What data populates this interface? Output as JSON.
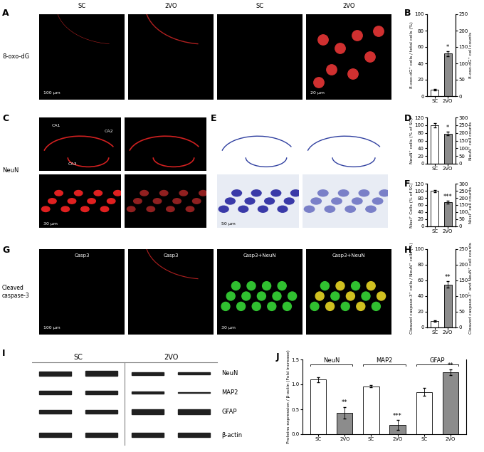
{
  "chart_data": [
    {
      "type": "bar",
      "panel": "B",
      "categories": [
        "SC",
        "2VO"
      ],
      "values": [
        8,
        52
      ],
      "errors": [
        1,
        3
      ],
      "colors": [
        "#ffffff",
        "#8c8c8c"
      ],
      "annotations": [
        null,
        "*"
      ],
      "ylabel": "8-oxo-dG⁺ cells / total cells (%)",
      "ylim": [
        0,
        100
      ],
      "yticks": [
        0,
        20,
        40,
        60,
        80,
        100
      ],
      "y2label": "8-oxo-dG⁺ cell counts",
      "y2lim": [
        0,
        250
      ],
      "y2ticks": [
        0,
        50,
        100,
        150,
        200,
        250
      ]
    },
    {
      "type": "bar",
      "panel": "D",
      "categories": [
        "SC",
        "2VO"
      ],
      "values": [
        100,
        78
      ],
      "errors": [
        5,
        5
      ],
      "colors": [
        "#ffffff",
        "#8c8c8c"
      ],
      "annotations": [
        null,
        "*"
      ],
      "ylabel": "NeuN⁺ cells (% of SC)",
      "ylim": [
        0,
        120
      ],
      "yticks": [
        0,
        20,
        40,
        60,
        80,
        100,
        120
      ],
      "y2label": "NeuN⁺ cell counts",
      "y2lim": [
        0,
        300
      ],
      "y2ticks": [
        0,
        50,
        100,
        150,
        200,
        250,
        300
      ]
    },
    {
      "type": "bar",
      "panel": "F",
      "categories": [
        "SC",
        "2VO"
      ],
      "values": [
        100,
        68
      ],
      "errors": [
        3,
        4
      ],
      "colors": [
        "#ffffff",
        "#8c8c8c"
      ],
      "annotations": [
        null,
        "***"
      ],
      "ylabel": "Nissl⁺ Cells (% of SC)",
      "ylim": [
        0,
        120
      ],
      "yticks": [
        0,
        20,
        40,
        60,
        80,
        100,
        120
      ],
      "y2label": "Nissl⁺ cell counts",
      "y2lim": [
        0,
        300
      ],
      "y2ticks": [
        0,
        50,
        100,
        150,
        200,
        250,
        300
      ]
    },
    {
      "type": "bar",
      "panel": "H",
      "categories": [
        "SC",
        "2VO"
      ],
      "values": [
        8,
        55
      ],
      "errors": [
        1,
        4
      ],
      "colors": [
        "#ffffff",
        "#8c8c8c"
      ],
      "annotations": [
        null,
        "**"
      ],
      "ylabel": "Cleaved caspase-3⁺ cells / NeuN⁺ cells (%)",
      "ylim": [
        0,
        100
      ],
      "yticks": [
        0,
        20,
        40,
        60,
        80,
        100
      ],
      "y2label": "Cleaved caspase-3⁺ and NeuN⁺ cell counts",
      "y2lim": [
        0,
        250
      ],
      "y2ticks": [
        0,
        50,
        100,
        150,
        200,
        250
      ]
    },
    {
      "type": "bar",
      "panel": "J",
      "categories": [
        "SC",
        "2VO",
        "SC",
        "2VO",
        "SC",
        "2VO"
      ],
      "groups": [
        "NeuN",
        "MAP2",
        "GFAP"
      ],
      "values": [
        1.1,
        0.43,
        0.96,
        0.19,
        0.85,
        1.24
      ],
      "errors": [
        0.05,
        0.12,
        0.02,
        0.1,
        0.08,
        0.06
      ],
      "colors": [
        "#ffffff",
        "#8c8c8c",
        "#ffffff",
        "#8c8c8c",
        "#ffffff",
        "#8c8c8c"
      ],
      "annotations": [
        null,
        "**",
        null,
        "***",
        null,
        "**"
      ],
      "ylabel": "Proteins expression / β-actin (Fold increase)",
      "ylim": [
        0,
        1.5
      ],
      "yticks": [
        {
          "value": 0,
          "label": "0.0"
        },
        {
          "value": 0.5,
          "label": "0.5"
        },
        {
          "value": 1,
          "label": "1.0"
        },
        {
          "value": 1.5,
          "label": "1.5"
        }
      ]
    }
  ],
  "image_panels": [
    {
      "panel": "A",
      "row_label": "8-oxo-dG",
      "columns": [
        "SC",
        "2VO",
        "SC",
        "2VO"
      ],
      "scale_bars": [
        "100 µm",
        null,
        null,
        "20 µm"
      ]
    },
    {
      "panel": "C",
      "row_label": "NeuN",
      "regions": [
        "CA1",
        "CA2",
        "CA3"
      ],
      "scale_bar": "30 µm"
    },
    {
      "panel": "E",
      "scale_bar": "50 µm"
    },
    {
      "panel": "G",
      "row_label": "Cleaved\ncaspase-3",
      "captions": [
        "Casp3",
        "Casp3",
        "Casp3+NeuN",
        "Casp3+NeuN"
      ],
      "scale_bars": [
        "100 µm",
        null,
        "30 µm",
        null
      ]
    }
  ],
  "blot": {
    "panel": "I",
    "groups": [
      "SC",
      "2VO"
    ],
    "rows": [
      "NeuN",
      "MAP2",
      "GFAP",
      "β-actin"
    ]
  }
}
